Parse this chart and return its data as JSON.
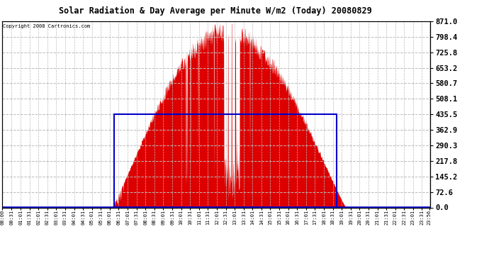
{
  "title": "Solar Radiation & Day Average per Minute W/m2 (Today) 20080829",
  "copyright": "Copyright 2008 Cartronics.com",
  "y_max": 871.0,
  "y_min": 0.0,
  "y_ticks": [
    0.0,
    72.6,
    145.2,
    217.8,
    290.3,
    362.9,
    435.5,
    508.1,
    580.7,
    653.2,
    725.8,
    798.4,
    871.0
  ],
  "background_color": "#ffffff",
  "plot_bg_color": "#ffffff",
  "grid_color": "#aaaaaa",
  "grid_color_minor": "#cccccc",
  "title_color": "#000000",
  "bar_color": "#dd0000",
  "avg_box_color": "#0000cc",
  "avg_line_color": "#0000cc",
  "total_minutes": 1440,
  "sunrise_minute": 368,
  "sunset_minute": 1155,
  "peak_minute": 752,
  "peak_value": 871.0,
  "avg_value": 435.5,
  "avg_start_minute": 375,
  "avg_end_minute": 1125,
  "tick_interval_minutes": 30,
  "x_tick_minutes": [
    0,
    31,
    61,
    91,
    121,
    151,
    181,
    211,
    241,
    271,
    301,
    331,
    361,
    391,
    421,
    451,
    481,
    511,
    541,
    571,
    601,
    631,
    661,
    691,
    721,
    751,
    781,
    811,
    841,
    871,
    901,
    931,
    961,
    991,
    1021,
    1051,
    1081,
    1111,
    1141,
    1171,
    1201,
    1231,
    1261,
    1291,
    1321,
    1351,
    1381,
    1411,
    1436
  ],
  "x_tick_labels": [
    "00:00",
    "00:31",
    "01:01",
    "01:31",
    "02:01",
    "02:31",
    "03:01",
    "03:31",
    "04:01",
    "04:31",
    "05:01",
    "05:31",
    "06:01",
    "06:31",
    "07:01",
    "07:31",
    "08:01",
    "08:31",
    "09:01",
    "09:31",
    "10:01",
    "10:31",
    "11:01",
    "11:31",
    "12:01",
    "12:31",
    "13:01",
    "13:31",
    "14:01",
    "14:31",
    "15:01",
    "15:31",
    "16:01",
    "16:31",
    "17:01",
    "17:31",
    "18:01",
    "18:31",
    "19:01",
    "19:31",
    "20:01",
    "20:31",
    "21:01",
    "21:31",
    "22:01",
    "22:31",
    "23:01",
    "23:31",
    "23:56"
  ]
}
